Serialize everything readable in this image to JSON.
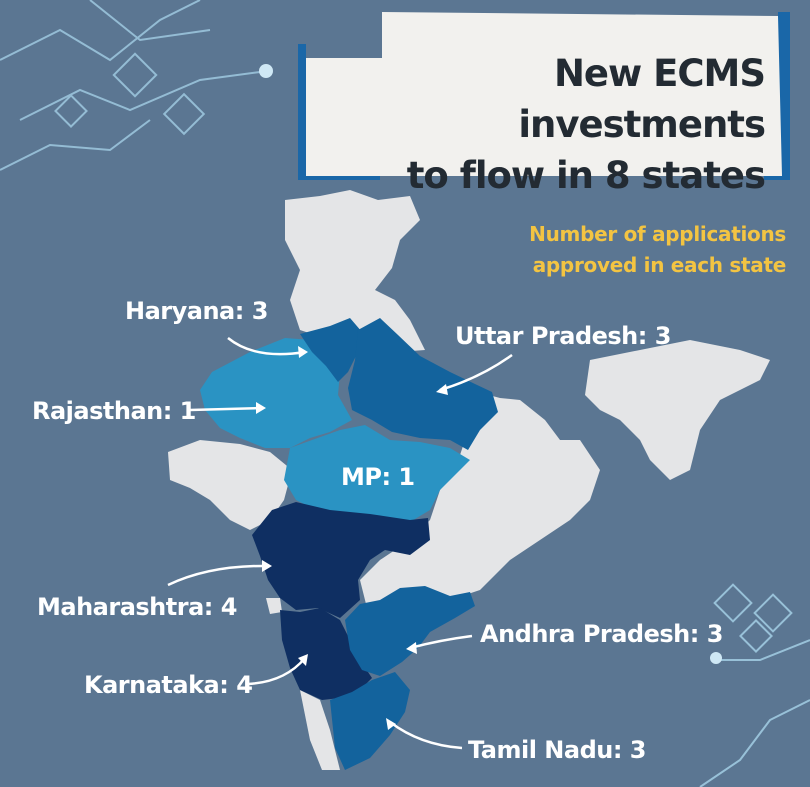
{
  "title": {
    "line1": "New ECMS investments",
    "line2": "to flow in 8 states"
  },
  "subtitle": {
    "line1": "Number of applications",
    "line2": "approved in each state"
  },
  "states": [
    {
      "name": "Haryana",
      "count": 3,
      "label": "Haryana: 3"
    },
    {
      "name": "Uttar Pradesh",
      "count": 3,
      "label": "Uttar Pradesh: 3"
    },
    {
      "name": "Rajasthan",
      "count": 1,
      "label": "Rajasthan: 1"
    },
    {
      "name": "MP",
      "count": 1,
      "label": "MP: 1"
    },
    {
      "name": "Maharashtra",
      "count": 4,
      "label": "Maharashtra: 4"
    },
    {
      "name": "Andhra Pradesh",
      "count": 3,
      "label": "Andhra Pradesh: 3"
    },
    {
      "name": "Karnataka",
      "count": 4,
      "label": "Karnataka: 4"
    },
    {
      "name": "Tamil Nadu",
      "count": 3,
      "label": "Tamil Nadu: 3"
    }
  ],
  "colors": {
    "background": "#5b7692",
    "title_box": "#f2f1ee",
    "title_text": "#232b33",
    "title_shadow": "#1a67a8",
    "subtitle_text": "#f3c442",
    "label_text": "#ffffff",
    "land_no_investment": "#e4e5e7",
    "count_1": "#2a93c3",
    "count_3": "#13639d",
    "count_4": "#0f2f62"
  }
}
